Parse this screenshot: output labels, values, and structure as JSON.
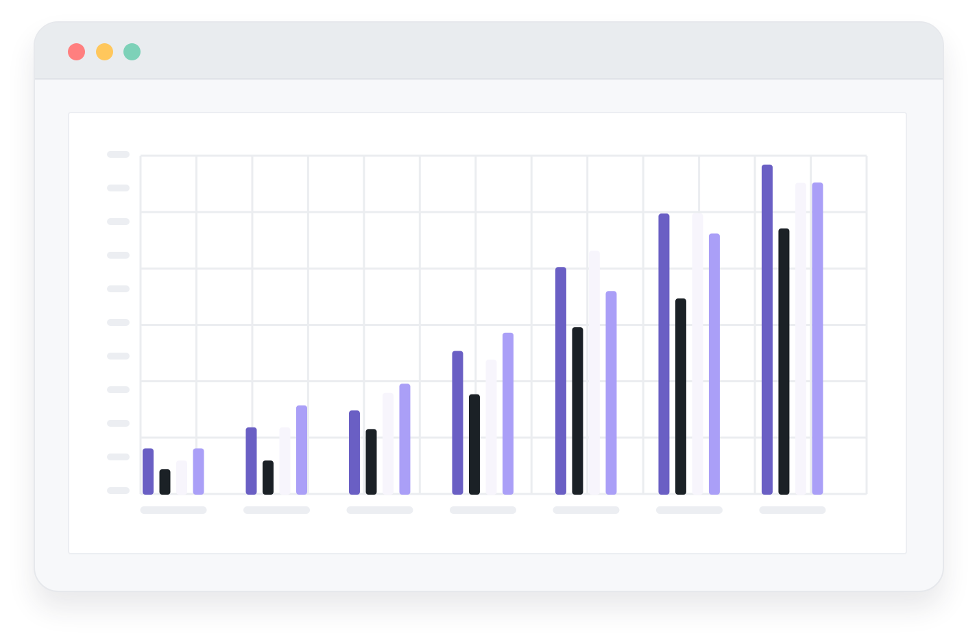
{
  "window": {
    "controls": [
      {
        "name": "close",
        "color": "#ff7f7f"
      },
      {
        "name": "minimize",
        "color": "#ffc75c"
      },
      {
        "name": "zoom",
        "color": "#7dd1b8"
      }
    ]
  },
  "chart_data": {
    "type": "bar",
    "title": "",
    "xlabel": "",
    "ylabel": "",
    "categories": [
      "",
      "",
      "",
      "",
      "",
      "",
      ""
    ],
    "ylim": [
      0,
      100
    ],
    "grid": true,
    "legend": "none",
    "series": [
      {
        "color": "#6a5fc4",
        "values": [
          13.5,
          19.7,
          24.7,
          42.3,
          67.1,
          82.9,
          97.4
        ]
      },
      {
        "color": "#1b2126",
        "values": [
          7.3,
          9.9,
          19.2,
          29.5,
          49.3,
          57.8,
          78.5
        ]
      },
      {
        "color": "#f7f5fc",
        "values": [
          9.9,
          19.7,
          29.9,
          39.7,
          71.9,
          83.0,
          92.0
        ]
      },
      {
        "color": "#aa9ff7",
        "values": [
          13.5,
          26.2,
          32.6,
          47.7,
          60.0,
          77.0,
          92.1
        ]
      }
    ],
    "placeholder_color": "#eceef2",
    "grid_color": "#ebedf0"
  }
}
